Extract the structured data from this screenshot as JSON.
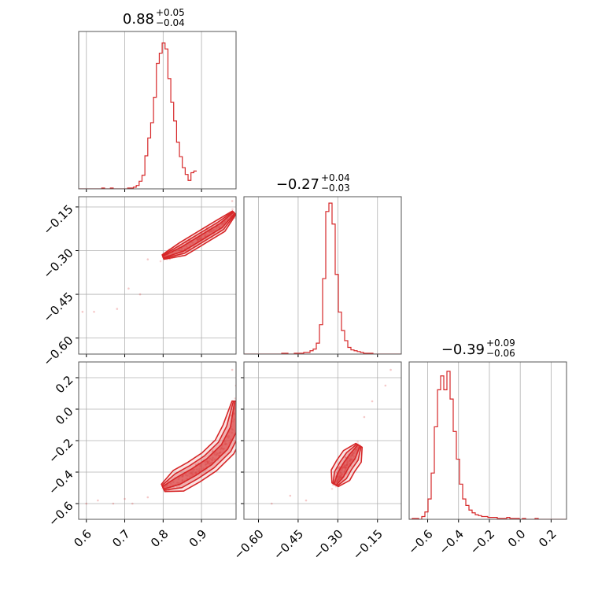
{
  "chart_data": {
    "type": "corner",
    "color": "#d62728",
    "grid": true,
    "panels": [
      {
        "id": "hist-1",
        "type": "histogram",
        "row": 0,
        "col": 0,
        "title": {
          "main": "0.88",
          "sup": "+0.05",
          "sub": "−0.04"
        },
        "x_range": [
          0.58,
          0.99
        ],
        "x_grid": [
          0.6,
          0.7,
          0.8,
          0.9
        ],
        "bin_start": 0.58,
        "bin_width": 0.0075,
        "counts": [
          0,
          0,
          0,
          0,
          0,
          0,
          0,
          0,
          1,
          0,
          0,
          1,
          0,
          0,
          0,
          0,
          0,
          1,
          1,
          2,
          4,
          9,
          16,
          39,
          60,
          78,
          108,
          148,
          160,
          172,
          165,
          130,
          102,
          80,
          55,
          38,
          25,
          17,
          10,
          19,
          21
        ],
        "y_max": 180
      },
      {
        "id": "scatter-2-1",
        "type": "scatter_contour",
        "row": 1,
        "col": 0,
        "x_range": [
          0.58,
          0.99
        ],
        "y_range": [
          -0.655,
          -0.115
        ],
        "x_grid": [
          0.6,
          0.7,
          0.8,
          0.9
        ],
        "y_grid": [
          -0.15,
          -0.3,
          -0.45,
          -0.6
        ],
        "y_ticks": [
          "−0.15",
          "−0.30",
          "−0.45",
          "−0.60"
        ],
        "trend": [
          [
            0.8,
            -0.322
          ],
          [
            0.85,
            -0.295
          ],
          [
            0.9,
            -0.255
          ],
          [
            0.95,
            -0.215
          ],
          [
            0.985,
            -0.17
          ]
        ],
        "contour_halfwidth": [
          0.018,
          0.012,
          0.006
        ],
        "outliers": [
          [
            0.59,
            -0.51
          ],
          [
            0.62,
            -0.51
          ],
          [
            0.68,
            -0.5
          ],
          [
            0.71,
            -0.43
          ],
          [
            0.74,
            -0.45
          ],
          [
            0.76,
            -0.33
          ],
          [
            0.98,
            -0.13
          ]
        ]
      },
      {
        "id": "hist-2",
        "type": "histogram",
        "row": 1,
        "col": 1,
        "title": {
          "main": "−0.27",
          "sup": "+0.04",
          "sub": "−0.03"
        },
        "x_range": [
          -0.655,
          -0.06
        ],
        "x_grid": [
          -0.6,
          -0.45,
          -0.3,
          -0.15
        ],
        "bin_start": -0.655,
        "bin_width": 0.0119,
        "counts": [
          0,
          0,
          0,
          0,
          0,
          0,
          0,
          0,
          0,
          0,
          0,
          0,
          1,
          1,
          0,
          0,
          1,
          1,
          1,
          2,
          2,
          4,
          6,
          13,
          35,
          90,
          170,
          180,
          155,
          95,
          50,
          28,
          16,
          8,
          5,
          4,
          3,
          2,
          1,
          1,
          1,
          0,
          0,
          0,
          0,
          0,
          0,
          0,
          0,
          0
        ],
        "y_max": 182
      },
      {
        "id": "scatter-3-1",
        "type": "scatter_contour",
        "row": 2,
        "col": 0,
        "x_range": [
          0.58,
          0.99
        ],
        "y_range": [
          -0.7,
          0.3
        ],
        "x_grid": [
          0.6,
          0.7,
          0.8,
          0.9
        ],
        "y_grid": [
          0.2,
          0.0,
          -0.2,
          -0.4,
          -0.6
        ],
        "y_ticks": [
          "0.2",
          "0.0",
          "−0.2",
          "−0.4",
          "−0.6"
        ],
        "x_ticks": [
          "0.6",
          "0.7",
          "0.8",
          "0.9"
        ],
        "trend": [
          [
            0.8,
            -0.5
          ],
          [
            0.84,
            -0.455
          ],
          [
            0.88,
            -0.4
          ],
          [
            0.92,
            -0.335
          ],
          [
            0.96,
            -0.24
          ],
          [
            0.985,
            -0.12
          ],
          [
            0.99,
            0.05
          ]
        ],
        "contour_halfwidth": [
          0.03,
          0.02,
          0.01
        ],
        "outliers": [
          [
            0.6,
            -0.6
          ],
          [
            0.63,
            -0.58
          ],
          [
            0.67,
            -0.6
          ],
          [
            0.7,
            -0.57
          ],
          [
            0.72,
            -0.6
          ],
          [
            0.76,
            -0.56
          ],
          [
            0.98,
            0.25
          ],
          [
            0.99,
            0.15
          ]
        ]
      },
      {
        "id": "scatter-3-2",
        "type": "scatter_contour",
        "row": 2,
        "col": 1,
        "x_range": [
          -0.655,
          -0.06
        ],
        "y_range": [
          -0.7,
          0.3
        ],
        "x_grid": [
          -0.6,
          -0.45,
          -0.3,
          -0.15
        ],
        "y_grid": [
          0.2,
          0.0,
          -0.2,
          -0.4,
          -0.6
        ],
        "x_ticks": [
          "−0.60",
          "−0.45",
          "−0.30",
          "−0.15"
        ],
        "trend": [
          [
            -0.31,
            -0.48
          ],
          [
            -0.29,
            -0.42
          ],
          [
            -0.27,
            -0.36
          ],
          [
            -0.245,
            -0.3
          ],
          [
            -0.22,
            -0.23
          ]
        ],
        "contour_halfwidth": [
          0.04,
          0.026,
          0.013
        ],
        "outliers": [
          [
            -0.55,
            -0.6
          ],
          [
            -0.48,
            -0.55
          ],
          [
            -0.42,
            -0.58
          ],
          [
            -0.2,
            -0.05
          ],
          [
            -0.17,
            0.05
          ],
          [
            -0.12,
            0.15
          ],
          [
            -0.1,
            0.25
          ]
        ]
      },
      {
        "id": "hist-3",
        "type": "histogram",
        "row": 2,
        "col": 2,
        "title": {
          "main": "−0.39",
          "sup": "+0.09",
          "sub": "−0.06"
        },
        "x_range": [
          -0.72,
          0.3
        ],
        "x_grid": [
          -0.6,
          -0.4,
          -0.2,
          0.0,
          0.2
        ],
        "x_ticks": [
          "−0.6",
          "−0.4",
          "−0.2",
          "0.0",
          "0.2"
        ],
        "bin_start": -0.72,
        "bin_width": 0.0204,
        "counts": [
          0,
          1,
          1,
          0,
          3,
          8,
          22,
          50,
          100,
          140,
          155,
          140,
          160,
          130,
          95,
          65,
          38,
          22,
          15,
          10,
          7,
          5,
          4,
          3,
          3,
          2,
          2,
          2,
          1,
          1,
          1,
          2,
          1,
          1,
          1,
          0,
          1,
          0,
          0,
          0,
          1,
          0,
          0,
          0,
          0,
          0,
          0,
          0,
          0,
          0
        ],
        "y_max": 165
      }
    ]
  }
}
